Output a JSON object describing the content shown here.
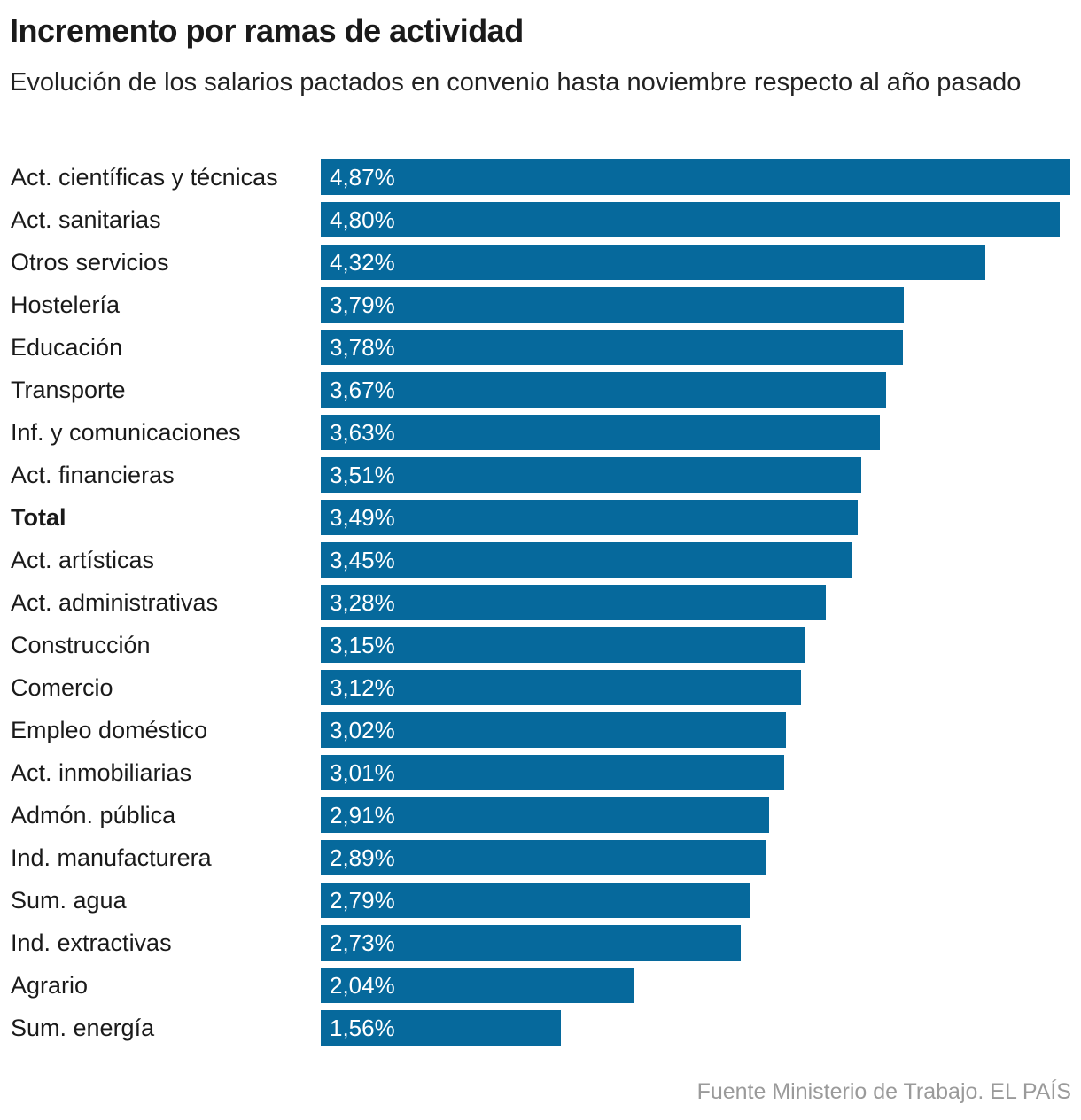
{
  "chart_data": {
    "type": "bar",
    "orientation": "horizontal",
    "title": "Incremento por ramas de actividad",
    "subtitle": "Evolución de los salarios pactados en convenio hasta noviembre respecto al año pasado",
    "source": "Fuente Ministerio de Trabajo. EL PAÍS",
    "categories": [
      "Act. científicas y técnicas",
      "Act. sanitarias",
      "Otros servicios",
      "Hostelería",
      "Educación",
      "Transporte",
      "Inf. y comunicaciones",
      "Act. financieras",
      "Total",
      "Act. artísticas",
      "Act. administrativas",
      "Construcción",
      "Comercio",
      "Empleo doméstico",
      "Act. inmobiliarias",
      "Admón. pública",
      "Ind. manufacturera",
      "Sum. agua",
      "Ind. extractivas",
      "Agrario",
      "Sum. energía"
    ],
    "values": [
      4.87,
      4.8,
      4.32,
      3.79,
      3.78,
      3.67,
      3.63,
      3.51,
      3.49,
      3.45,
      3.28,
      3.15,
      3.12,
      3.02,
      3.01,
      2.91,
      2.89,
      2.79,
      2.73,
      2.04,
      1.56
    ],
    "data_labels": [
      "4,87%",
      "4,80%",
      "4,32%",
      "3,79%",
      "3,78%",
      "3,67%",
      "3,63%",
      "3,51%",
      "3,49%",
      "3,45%",
      "3,28%",
      "3,15%",
      "3,12%",
      "3,02%",
      "3,01%",
      "2,91%",
      "2,89%",
      "2,79%",
      "2,73%",
      "2,04%",
      "1,56%"
    ],
    "highlighted_category": "Total",
    "bar_color": "#06699c",
    "xlim": [
      0,
      4.87
    ],
    "grid": false,
    "legend": "none"
  }
}
